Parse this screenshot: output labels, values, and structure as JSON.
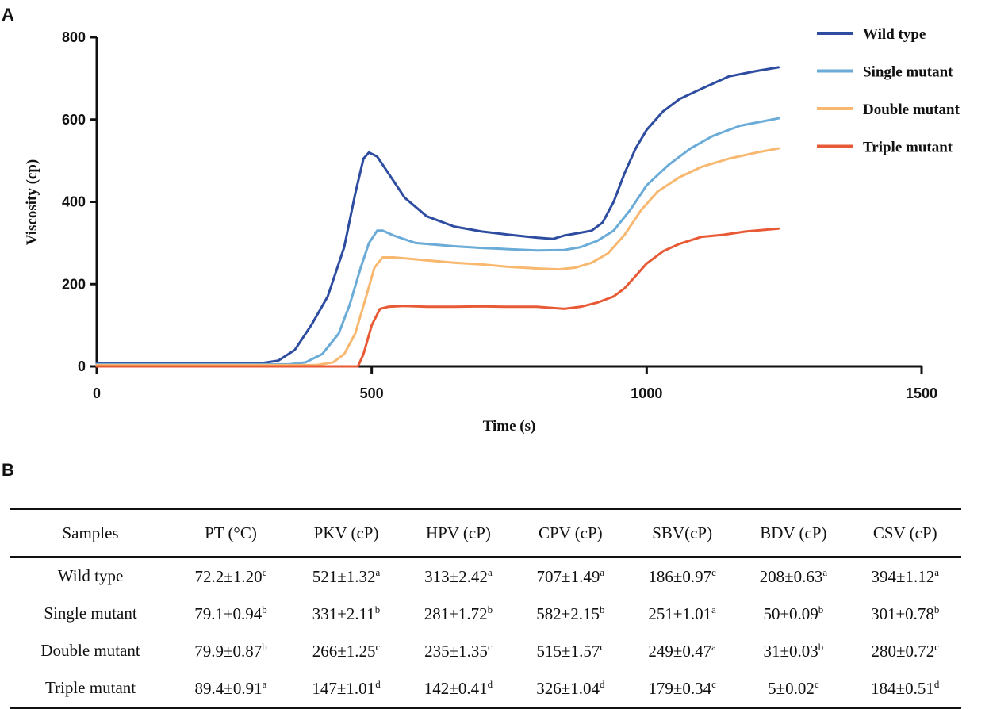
{
  "panels": {
    "a_label": "A",
    "b_label": "B"
  },
  "chart_data": {
    "type": "line",
    "title": "",
    "xlabel": "Time (s)",
    "ylabel": "Viscosity (cp)",
    "xlim": [
      0,
      1500
    ],
    "ylim": [
      0,
      800
    ],
    "xticks": [
      0,
      500,
      1000,
      1500
    ],
    "yticks": [
      0,
      200,
      400,
      600,
      800
    ],
    "legend_position": "top-right",
    "series": [
      {
        "name": "Wild type",
        "color": "#2e4da0",
        "x": [
          0,
          300,
          330,
          360,
          390,
          420,
          450,
          470,
          485,
          495,
          510,
          530,
          560,
          600,
          650,
          700,
          750,
          800,
          830,
          850,
          880,
          900,
          920,
          940,
          960,
          980,
          1000,
          1030,
          1060,
          1100,
          1150,
          1200,
          1240
        ],
        "y": [
          8,
          8,
          14,
          40,
          100,
          170,
          290,
          420,
          505,
          520,
          510,
          470,
          410,
          365,
          340,
          328,
          320,
          313,
          310,
          318,
          325,
          330,
          350,
          400,
          470,
          530,
          575,
          620,
          650,
          675,
          705,
          718,
          727
        ]
      },
      {
        "name": "Single mutant",
        "color": "#6aabd8",
        "x": [
          0,
          350,
          380,
          410,
          440,
          460,
          480,
          495,
          510,
          520,
          540,
          580,
          650,
          700,
          750,
          800,
          850,
          880,
          910,
          940,
          970,
          1000,
          1040,
          1080,
          1120,
          1170,
          1240
        ],
        "y": [
          5,
          5,
          10,
          30,
          80,
          150,
          240,
          300,
          330,
          330,
          318,
          300,
          292,
          288,
          285,
          282,
          283,
          290,
          305,
          330,
          380,
          440,
          490,
          530,
          560,
          585,
          603
        ]
      },
      {
        "name": "Double mutant",
        "color": "#f8b870",
        "x": [
          0,
          400,
          430,
          450,
          470,
          490,
          505,
          520,
          540,
          600,
          650,
          700,
          750,
          800,
          840,
          870,
          900,
          930,
          960,
          990,
          1020,
          1060,
          1100,
          1150,
          1200,
          1240
        ],
        "y": [
          3,
          3,
          10,
          30,
          80,
          170,
          240,
          265,
          265,
          258,
          252,
          248,
          242,
          238,
          236,
          240,
          252,
          275,
          320,
          380,
          425,
          460,
          485,
          505,
          520,
          530
        ]
      },
      {
        "name": "Triple mutant",
        "color": "#e85a35",
        "x": [
          0,
          475,
          485,
          500,
          515,
          530,
          560,
          600,
          650,
          700,
          750,
          800,
          850,
          880,
          910,
          940,
          960,
          980,
          1000,
          1030,
          1060,
          1100,
          1140,
          1180,
          1240
        ],
        "y": [
          0,
          0,
          30,
          100,
          140,
          145,
          147,
          145,
          145,
          146,
          145,
          145,
          140,
          145,
          155,
          170,
          190,
          220,
          250,
          280,
          298,
          315,
          320,
          328,
          335
        ]
      }
    ]
  },
  "table": {
    "headers": [
      "Samples",
      "PT (°C)",
      "PKV (cP)",
      "HPV (cP)",
      "CPV (cP)",
      "SBV(cP)",
      "BDV (cP)",
      "CSV (cP)"
    ],
    "rows": [
      {
        "cells": [
          {
            "v": "Wild type",
            "s": ""
          },
          {
            "v": "72.2±1.20",
            "s": "c"
          },
          {
            "v": "521±1.32",
            "s": "a"
          },
          {
            "v": "313±2.42",
            "s": "a"
          },
          {
            "v": "707±1.49",
            "s": "a"
          },
          {
            "v": "186±0.97",
            "s": "c"
          },
          {
            "v": "208±0.63",
            "s": "a"
          },
          {
            "v": "394±1.12",
            "s": "a"
          }
        ]
      },
      {
        "cells": [
          {
            "v": "Single mutant",
            "s": ""
          },
          {
            "v": "79.1±0.94",
            "s": "b"
          },
          {
            "v": "331±2.11",
            "s": "b"
          },
          {
            "v": "281±1.72",
            "s": "b"
          },
          {
            "v": "582±2.15",
            "s": "b"
          },
          {
            "v": "251±1.01",
            "s": "a"
          },
          {
            "v": "50±0.09",
            "s": "b"
          },
          {
            "v": "301±0.78",
            "s": "b"
          }
        ]
      },
      {
        "cells": [
          {
            "v": "Double mutant",
            "s": ""
          },
          {
            "v": "79.9±0.87",
            "s": "b"
          },
          {
            "v": "266±1.25",
            "s": "c"
          },
          {
            "v": "235±1.35",
            "s": "c"
          },
          {
            "v": "515±1.57",
            "s": "c"
          },
          {
            "v": "249±0.47",
            "s": "a"
          },
          {
            "v": "31±0.03",
            "s": "b"
          },
          {
            "v": "280±0.72",
            "s": "c"
          }
        ]
      },
      {
        "cells": [
          {
            "v": "Triple mutant",
            "s": ""
          },
          {
            "v": "89.4±0.91",
            "s": "a"
          },
          {
            "v": "147±1.01",
            "s": "d"
          },
          {
            "v": "142±0.41",
            "s": "d"
          },
          {
            "v": "326±1.04",
            "s": "d"
          },
          {
            "v": "179±0.34",
            "s": "c"
          },
          {
            "v": "5±0.02",
            "s": "c"
          },
          {
            "v": "184±0.51",
            "s": "d"
          }
        ]
      }
    ]
  }
}
